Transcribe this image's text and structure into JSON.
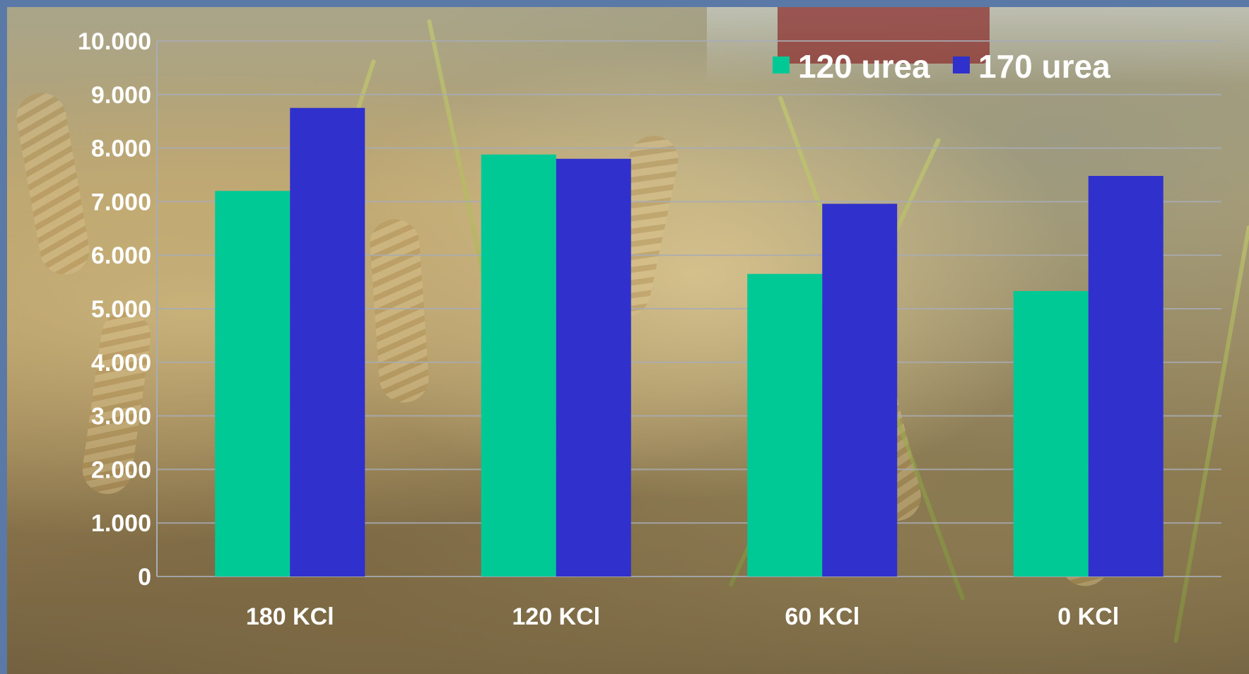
{
  "chart_data": {
    "type": "bar",
    "categories": [
      "180 KCl",
      "120 KCl",
      "60 KCl",
      "0 KCl"
    ],
    "series": [
      {
        "name": "120 urea",
        "color": "#00c996",
        "values": [
          7200,
          7880,
          5650,
          5330
        ]
      },
      {
        "name": "170 urea",
        "color": "#3030cc",
        "values": [
          8750,
          7800,
          6960,
          7480
        ]
      }
    ],
    "yticks": [
      "0",
      "1.000",
      "2.000",
      "3.000",
      "4.000",
      "5.000",
      "6.000",
      "7.000",
      "8.000",
      "9.000",
      "10.000"
    ],
    "ylim": [
      0,
      10000
    ],
    "grid": true,
    "legend_position": "top-right",
    "xlabel": "",
    "ylabel": ""
  },
  "colors": {
    "frame": "#5b79a6",
    "gridline": "#a8acb4",
    "text": "#ffffff"
  }
}
